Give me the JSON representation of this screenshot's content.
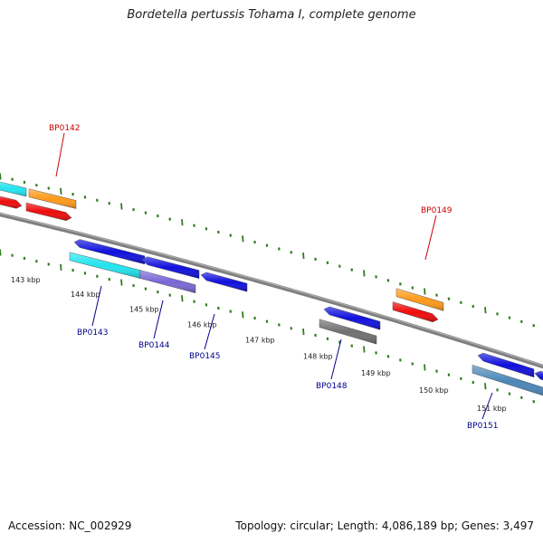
{
  "title": "Bordetella pertussis Tohama I, complete genome",
  "footer": {
    "accession": "Accession: NC_002929",
    "summary": "Topology: circular; Length: 4,086,189 bp; Genes: 3,497"
  },
  "colors": {
    "background": "#ffffff",
    "backbone": "#7f7f7f",
    "tick": "#2e7d1e",
    "label_forward": "#cc0000",
    "label_reverse": "#00008b",
    "blue": "#1010dd",
    "cyan": "#22e4ee",
    "orange": "#ff9a1a",
    "red": "#ee0b0b",
    "purple": "#7a67d6",
    "gray": "#707070",
    "steel": "#4a86b8"
  },
  "kbp_labels": [
    "143 kbp",
    "144 kbp",
    "145 kbp",
    "146 kbp",
    "147 kbp",
    "148 kbp",
    "149 kbp",
    "150 kbp",
    "151 kbp"
  ],
  "forward_genes": [
    {
      "name": "BP0142"
    },
    {
      "name": "BP0149"
    }
  ],
  "reverse_genes": [
    {
      "name": "BP0143"
    },
    {
      "name": "BP0144"
    },
    {
      "name": "BP0145"
    },
    {
      "name": "BP0148"
    },
    {
      "name": "BP0151"
    }
  ]
}
